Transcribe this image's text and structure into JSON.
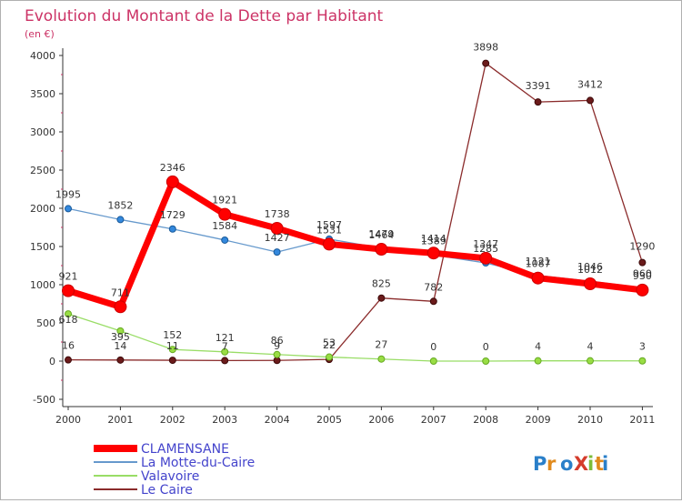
{
  "chart_data": {
    "type": "line",
    "title": "Evolution du Montant de la Dette par Habitant",
    "subtitle": "(en €)",
    "x": [
      "2000",
      "2001",
      "2002",
      "2003",
      "2004",
      "2005",
      "2006",
      "2007",
      "2008",
      "2009",
      "2010",
      "2011"
    ],
    "ylim": [
      -500,
      4000
    ],
    "yticks": [
      "4000",
      "3500",
      "3000",
      "2500",
      "2000",
      "1500",
      "1000",
      "500",
      "0",
      "-500"
    ],
    "grid": false,
    "legend_position": "bottom-left",
    "series": [
      {
        "name": "CLAMENSANE",
        "color": "#ff0000",
        "values": [
          921,
          711,
          2346,
          1921,
          1738,
          1531,
          1464,
          1414,
          1347,
          1087,
          1012,
          930
        ]
      },
      {
        "name": "La Motte-du-Caire",
        "color": "#6699cc",
        "values": [
          1995,
          1852,
          1729,
          1584,
          1427,
          1597,
          1479,
          1389,
          1285,
          1121,
          1046,
          960
        ]
      },
      {
        "name": "Valavoire",
        "color": "#99dd66",
        "values": [
          618,
          395,
          152,
          121,
          86,
          53,
          27,
          0,
          0,
          4,
          4,
          3
        ]
      },
      {
        "name": "Le Caire",
        "color": "#8b2c2c",
        "values": [
          16,
          14,
          11,
          7,
          9,
          22,
          825,
          782,
          3898,
          3391,
          3412,
          1290
        ]
      }
    ],
    "labels": [
      {
        "text": "1995"
      },
      {
        "text": "1852"
      },
      {
        "text": "2346"
      },
      {
        "text": "1921"
      },
      {
        "text": "1738"
      },
      {
        "text": "1729"
      },
      {
        "text": "1584"
      },
      {
        "text": "1427"
      },
      {
        "text": "1597"
      },
      {
        "text": "1531"
      },
      {
        "text": "1479"
      },
      {
        "text": "1464"
      },
      {
        "text": "1414"
      },
      {
        "text": "1389"
      },
      {
        "text": "1347"
      },
      {
        "text": "1285"
      },
      {
        "text": "1121"
      },
      {
        "text": "1087"
      },
      {
        "text": "1046"
      },
      {
        "text": "1012"
      },
      {
        "text": "960"
      },
      {
        "text": "930"
      },
      {
        "text": "921"
      },
      {
        "text": "711"
      },
      {
        "text": "618"
      },
      {
        "text": "395"
      },
      {
        "text": "152"
      },
      {
        "text": "121"
      },
      {
        "text": "86"
      },
      {
        "text": "53"
      },
      {
        "text": "27"
      },
      {
        "text": "0"
      },
      {
        "text": "0"
      },
      {
        "text": "4"
      },
      {
        "text": "4"
      },
      {
        "text": "3"
      },
      {
        "text": "16"
      },
      {
        "text": "14"
      },
      {
        "text": "11"
      },
      {
        "text": "7"
      },
      {
        "text": "9"
      },
      {
        "text": "22"
      },
      {
        "text": "825"
      },
      {
        "text": "782"
      },
      {
        "text": "3898"
      },
      {
        "text": "3391"
      },
      {
        "text": "3412"
      },
      {
        "text": "1290"
      }
    ]
  },
  "logo": {
    "text": "ProXiti"
  }
}
